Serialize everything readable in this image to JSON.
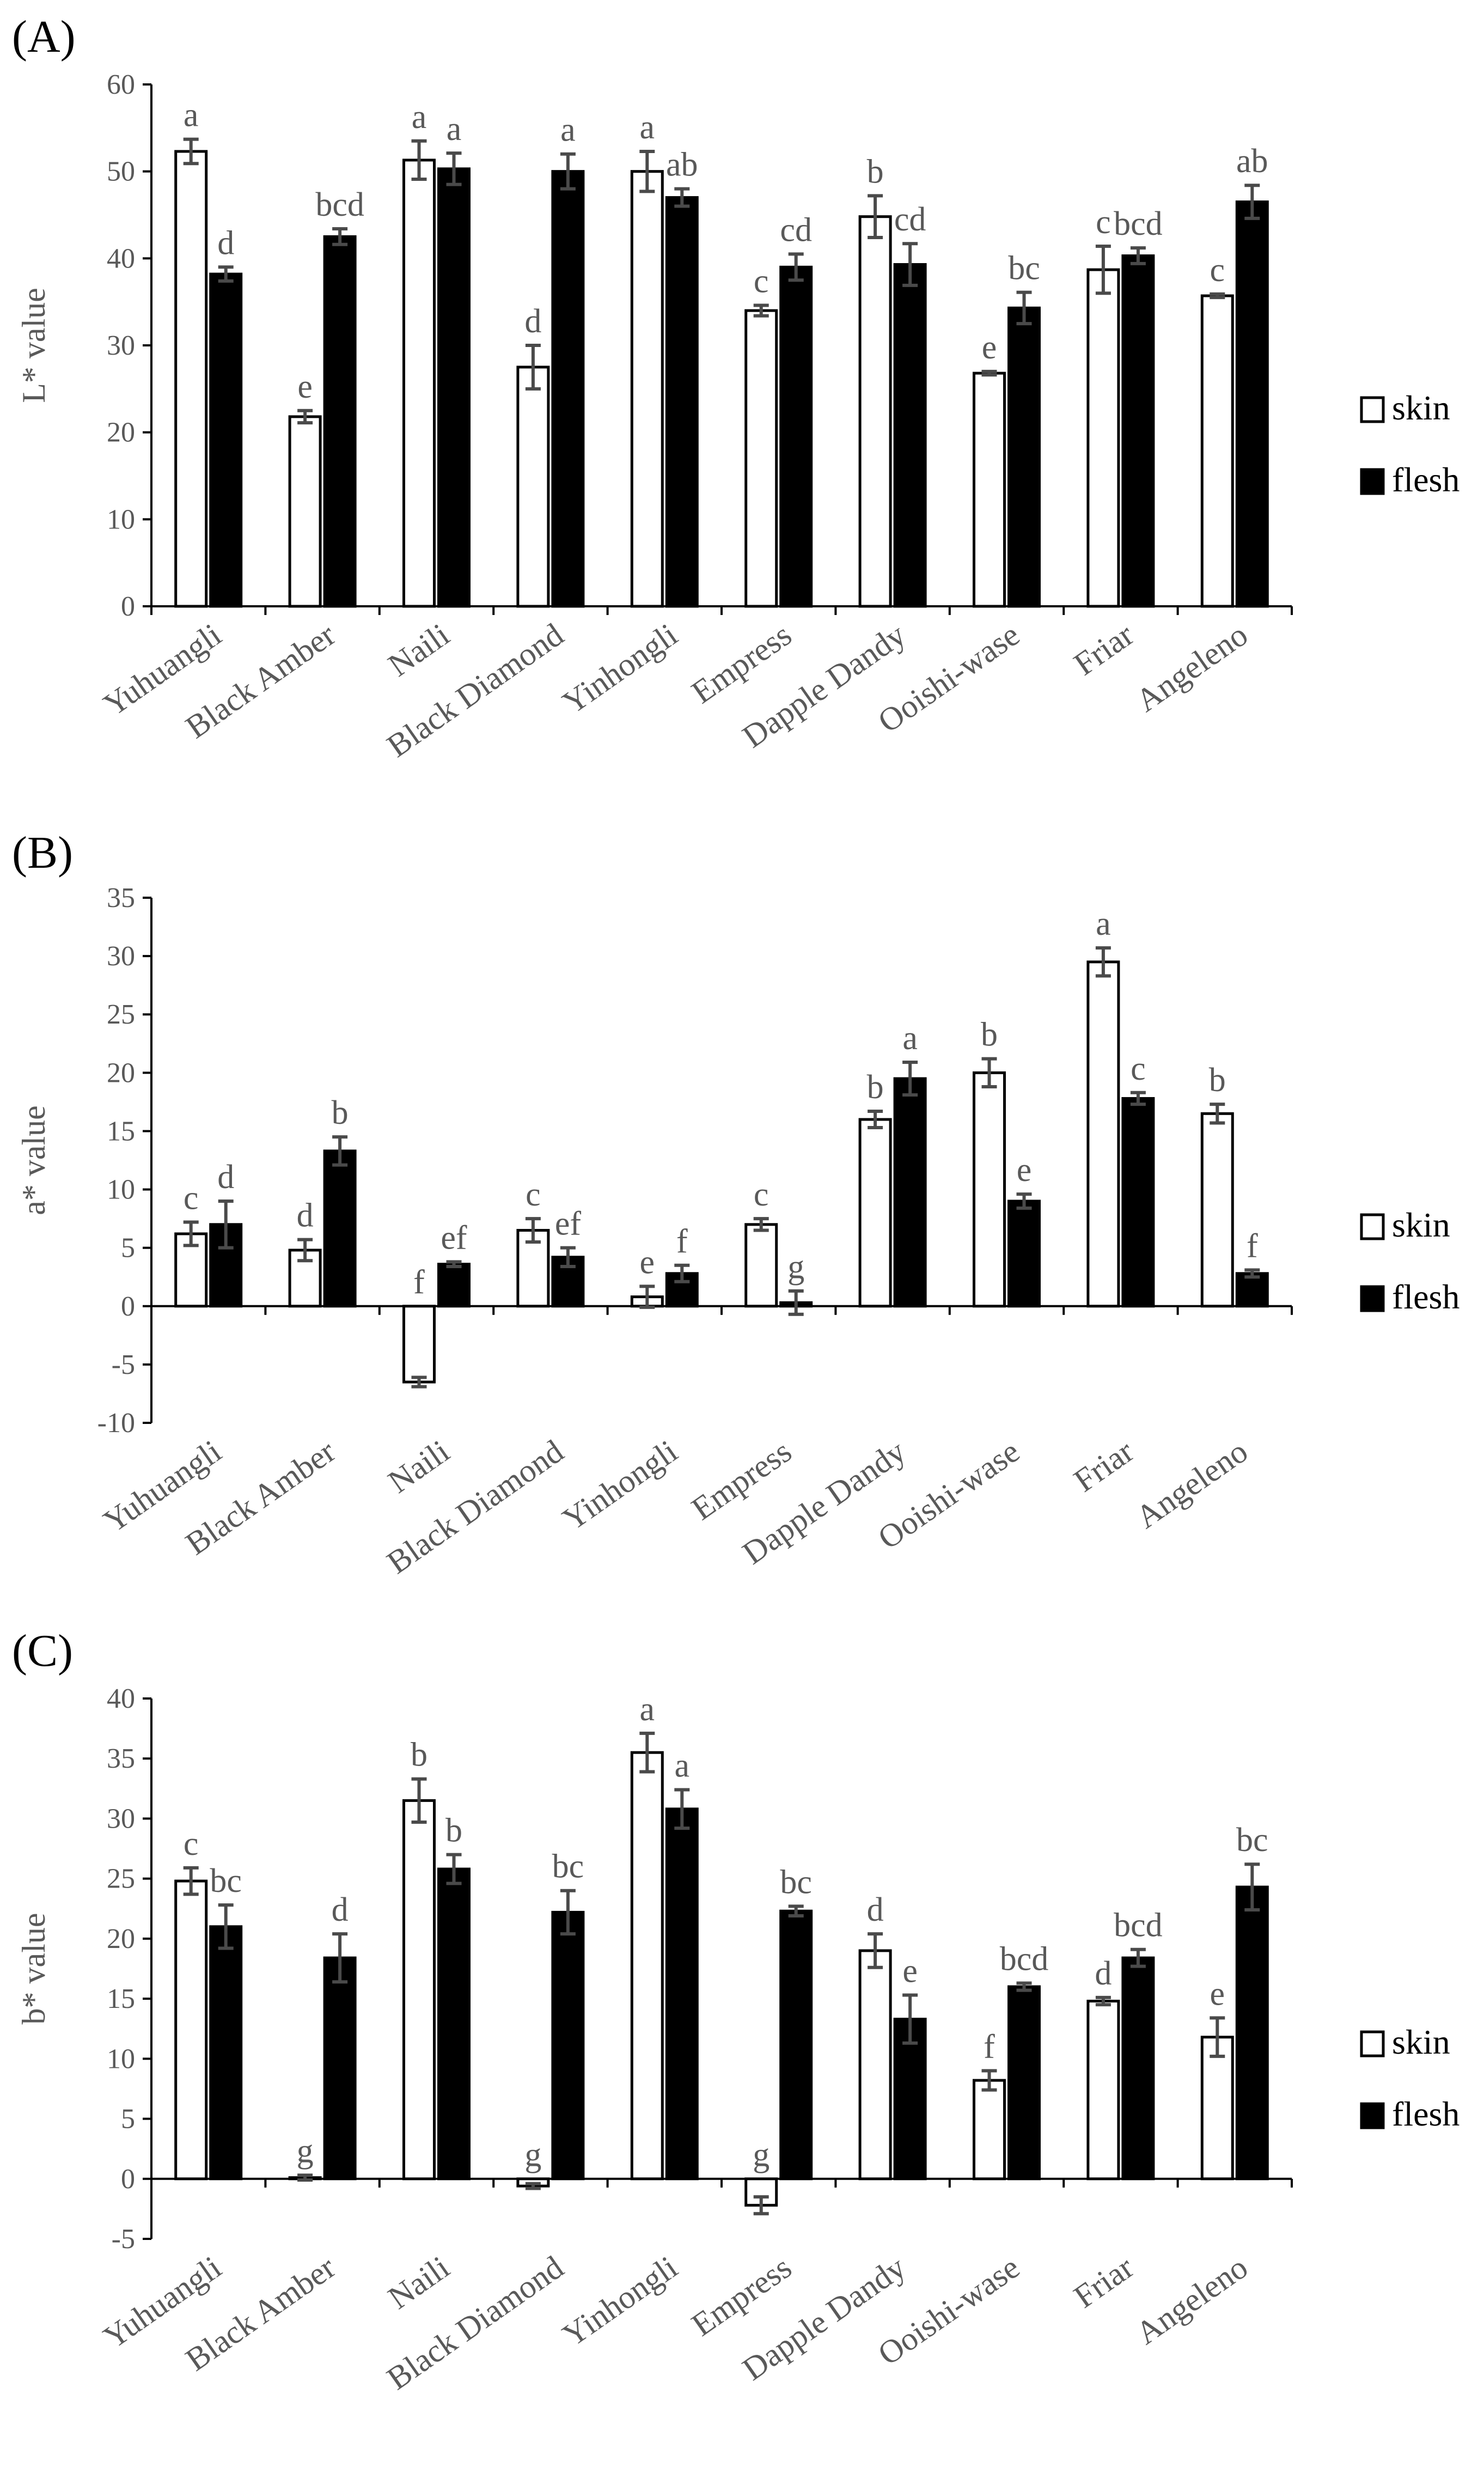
{
  "chart_data": [
    {
      "type": "bar",
      "panel": "(A)",
      "ylabel": "L* value",
      "ylim": [
        0,
        60
      ],
      "yticks": [
        0,
        10,
        20,
        30,
        40,
        50,
        60
      ],
      "categories": [
        "Yuhuangli",
        "Black Amber",
        "Naili",
        "Black Diamond",
        "Yinhongli",
        "Empress",
        "Dapple Dandy",
        "Ooishi-wase",
        "Friar",
        "Angeleno"
      ],
      "series": [
        {
          "name": "skin",
          "values": [
            52.3,
            21.8,
            51.3,
            27.5,
            50.0,
            34.0,
            44.8,
            26.8,
            38.7,
            35.7
          ],
          "errors": [
            1.4,
            0.7,
            2.2,
            2.5,
            2.3,
            0.6,
            2.4,
            0.2,
            2.7,
            0.2
          ],
          "letters": [
            "a",
            "e",
            "a",
            "d",
            "a",
            "c",
            "b",
            "e",
            "c",
            "c"
          ]
        },
        {
          "name": "flesh",
          "values": [
            38.2,
            42.5,
            50.3,
            50.0,
            47.0,
            39.0,
            39.3,
            34.3,
            40.3,
            46.5
          ],
          "errors": [
            0.8,
            0.9,
            1.8,
            2.0,
            1.0,
            1.5,
            2.4,
            1.8,
            0.9,
            1.9
          ],
          "letters": [
            "d",
            "bcd",
            "a",
            "a",
            "ab",
            "cd",
            "cd",
            "bc",
            "bcd",
            "ab"
          ]
        }
      ],
      "legend": [
        "skin",
        "flesh"
      ]
    },
    {
      "type": "bar",
      "panel": "(B)",
      "ylabel": "a* value",
      "ylim": [
        -10,
        35
      ],
      "yticks": [
        -10,
        -5,
        0,
        5,
        10,
        15,
        20,
        25,
        30,
        35
      ],
      "categories": [
        "Yuhuangli",
        "Black Amber",
        "Naili",
        "Black Diamond",
        "Yinhongli",
        "Empress",
        "Dapple Dandy",
        "Ooishi-wase",
        "Friar",
        "Angeleno"
      ],
      "series": [
        {
          "name": "skin",
          "values": [
            6.2,
            4.8,
            -6.5,
            6.5,
            0.8,
            7.0,
            16.0,
            20.0,
            29.5,
            16.5
          ],
          "errors": [
            1.0,
            0.9,
            0.4,
            1.0,
            0.9,
            0.5,
            0.7,
            1.2,
            1.2,
            0.8
          ],
          "letters": [
            "c",
            "d",
            "f",
            "c",
            "e",
            "c",
            "b",
            "b",
            "a",
            "b"
          ]
        },
        {
          "name": "flesh",
          "values": [
            7.0,
            13.3,
            3.6,
            4.2,
            2.8,
            0.3,
            19.5,
            9.0,
            17.8,
            2.8
          ],
          "errors": [
            2.0,
            1.2,
            0.2,
            0.8,
            0.7,
            1.0,
            1.4,
            0.6,
            0.5,
            0.3
          ],
          "letters": [
            "d",
            "b",
            "ef",
            "ef",
            "f",
            "g",
            "a",
            "e",
            "c",
            "f"
          ]
        }
      ],
      "legend": [
        "skin",
        "flesh"
      ]
    },
    {
      "type": "bar",
      "panel": "(C)",
      "ylabel": "b* value",
      "ylim": [
        -5,
        40
      ],
      "yticks": [
        -5,
        0,
        5,
        10,
        15,
        20,
        25,
        30,
        35,
        40
      ],
      "categories": [
        "Yuhuangli",
        "Black Amber",
        "Naili",
        "Black Diamond",
        "Yinhongli",
        "Empress",
        "Dapple Dandy",
        "Ooishi-wase",
        "Friar",
        "Angeleno"
      ],
      "series": [
        {
          "name": "skin",
          "values": [
            24.8,
            0.1,
            31.5,
            -0.6,
            35.5,
            -2.2,
            19.0,
            8.2,
            14.8,
            11.8
          ],
          "errors": [
            1.1,
            0.2,
            1.8,
            0.2,
            1.6,
            0.7,
            1.4,
            0.8,
            0.3,
            1.6
          ],
          "letters": [
            "c",
            "g",
            "b",
            "g",
            "a",
            "g",
            "d",
            "f",
            "d",
            "e"
          ]
        },
        {
          "name": "flesh",
          "values": [
            21.0,
            18.4,
            25.8,
            22.2,
            30.8,
            22.3,
            13.3,
            16.0,
            18.4,
            24.3
          ],
          "errors": [
            1.8,
            2.0,
            1.2,
            1.8,
            1.6,
            0.4,
            2.0,
            0.3,
            0.7,
            1.9
          ],
          "letters": [
            "bc",
            "d",
            "b",
            "bc",
            "a",
            "bc",
            "e",
            "bcd",
            "bcd",
            "bc"
          ]
        }
      ],
      "legend": [
        "skin",
        "flesh"
      ]
    }
  ]
}
